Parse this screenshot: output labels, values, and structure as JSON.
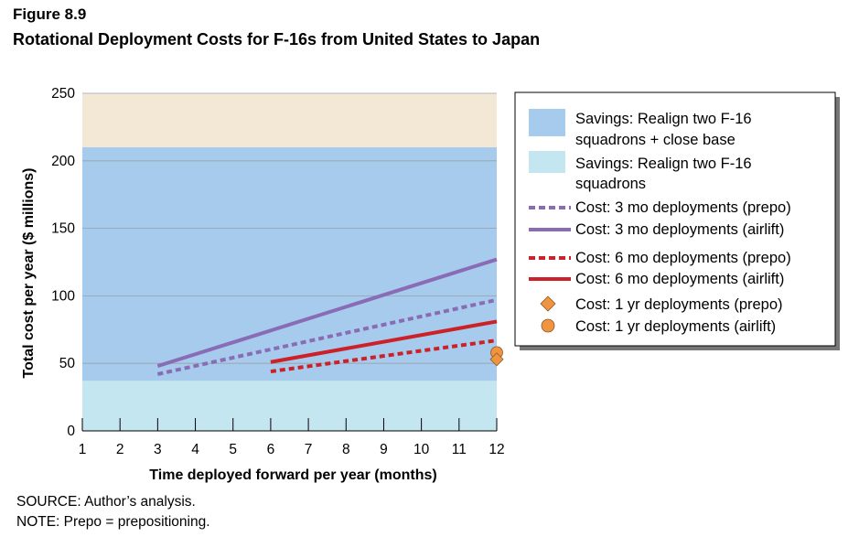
{
  "figure": {
    "label": "Figure 8.9",
    "title": "Rotational Deployment Costs for F-16s from United States to Japan",
    "source": "SOURCE: Author’s analysis.",
    "note": "NOTE: Prepo = prepositioning."
  },
  "chart_data": {
    "type": "line",
    "title": "Rotational Deployment Costs for F-16s from United States to Japan",
    "xlabel": "Time deployed forward per year (months)",
    "ylabel": "Total cost per year ($ millions)",
    "xlim": [
      1,
      12
    ],
    "ylim": [
      0,
      250
    ],
    "x_ticks": [
      "1",
      "2",
      "3",
      "4",
      "5",
      "6",
      "7",
      "8",
      "9",
      "10",
      "11",
      "12"
    ],
    "y_ticks": [
      "0",
      "50",
      "100",
      "150",
      "200",
      "250"
    ],
    "grid": true,
    "legend_position": "top-right",
    "bands": [
      {
        "name": "Savings: Realign two F-16 squadrons + close base",
        "label_lines": [
          "Savings: Realign two F-16",
          "squadrons + close base"
        ],
        "from": 37,
        "to": 210,
        "color": "#a6cbec"
      },
      {
        "name": "Savings: Realign two F-16 squadrons",
        "label_lines": [
          "Savings: Realign two F-16",
          "squadrons"
        ],
        "from": 0,
        "to": 37,
        "color": "#c4e6f0"
      }
    ],
    "above_band_color": "#f3e8d6",
    "series": [
      {
        "name": "Cost: 3 mo deployments (prepo)",
        "style": "dashed",
        "color": "#8a6cb6",
        "x": [
          3,
          12
        ],
        "y": [
          42,
          97
        ]
      },
      {
        "name": "Cost: 3 mo deployments (airlift)",
        "style": "solid",
        "color": "#8a6cb6",
        "x": [
          3,
          12
        ],
        "y": [
          48,
          127
        ]
      },
      {
        "name": "Cost: 6 mo deployments (prepo)",
        "style": "dashed",
        "color": "#cc2129",
        "x": [
          6,
          12
        ],
        "y": [
          44,
          67
        ]
      },
      {
        "name": "Cost: 6 mo deployments (airlift)",
        "style": "solid",
        "color": "#cc2129",
        "x": [
          6,
          12
        ],
        "y": [
          51,
          81
        ]
      },
      {
        "name": "Cost: 1 yr deployments (prepo)",
        "style": "diamond",
        "color": "#f0943f",
        "x": [
          12
        ],
        "y": [
          53
        ]
      },
      {
        "name": "Cost: 1 yr deployments (airlift)",
        "style": "circle",
        "color": "#f0943f",
        "x": [
          12
        ],
        "y": [
          58
        ]
      }
    ]
  }
}
